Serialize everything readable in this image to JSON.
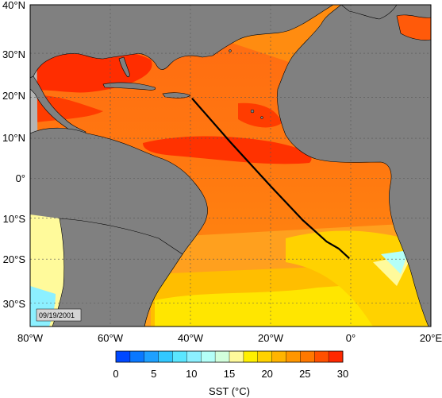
{
  "map": {
    "date_stamp": "09/19/2001",
    "lat_ticks": [
      "40°N",
      "30°N",
      "20°N",
      "10°N",
      "0°",
      "10°S",
      "20°S",
      "30°S"
    ],
    "lon_ticks": [
      "80°W",
      "60°W",
      "40°W",
      "20°W",
      "0°",
      "20°E"
    ],
    "land_color": "#808080",
    "shelf_color": "#b4b4b4",
    "track_color": "#000000",
    "track_points": [
      {
        "lon": -39.5,
        "lat": 19.6
      },
      {
        "lon": -30,
        "lat": 9
      },
      {
        "lon": -20,
        "lat": -2
      },
      {
        "lon": -12,
        "lat": -10.5
      },
      {
        "lon": -6,
        "lat": -15.8
      },
      {
        "lon": -3,
        "lat": -17.5
      },
      {
        "lon": -0.5,
        "lat": -19.7
      }
    ]
  },
  "colorbar": {
    "title": "SST (°C)",
    "ticks": [
      "0",
      "5",
      "10",
      "15",
      "20",
      "25",
      "30"
    ],
    "min": 0,
    "max": 30,
    "colors": [
      "#0048ff",
      "#0a78ff",
      "#1ea0ff",
      "#32c8ff",
      "#5ae6ff",
      "#8cf0ff",
      "#b4fff8",
      "#d2ffdc",
      "#fffa9b",
      "#fff000",
      "#ffd200",
      "#ffb400",
      "#ff9600",
      "#ff7800",
      "#ff5000",
      "#ff2800"
    ]
  }
}
